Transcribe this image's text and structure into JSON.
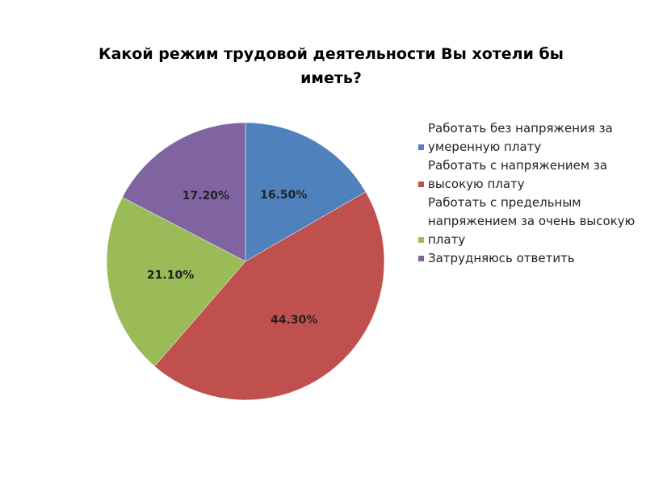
{
  "chart_data": {
    "type": "pie",
    "title": "Какой режим трудовой деятельности Вы хотели бы иметь?",
    "categories": [
      "Работать без напряжения за умеренную плату",
      "Работать с напряжением за высокую плату",
      "Работать с предельным напряжением за очень высокую плату",
      "Затрудняюсь ответить"
    ],
    "values": [
      16.5,
      44.3,
      21.1,
      17.2
    ],
    "value_labels": [
      "16.50%",
      "44.30%",
      "21.10%",
      "17.20%"
    ],
    "colors": [
      "#4f81bd",
      "#c0504d",
      "#9bbb59",
      "#8064a2"
    ]
  }
}
